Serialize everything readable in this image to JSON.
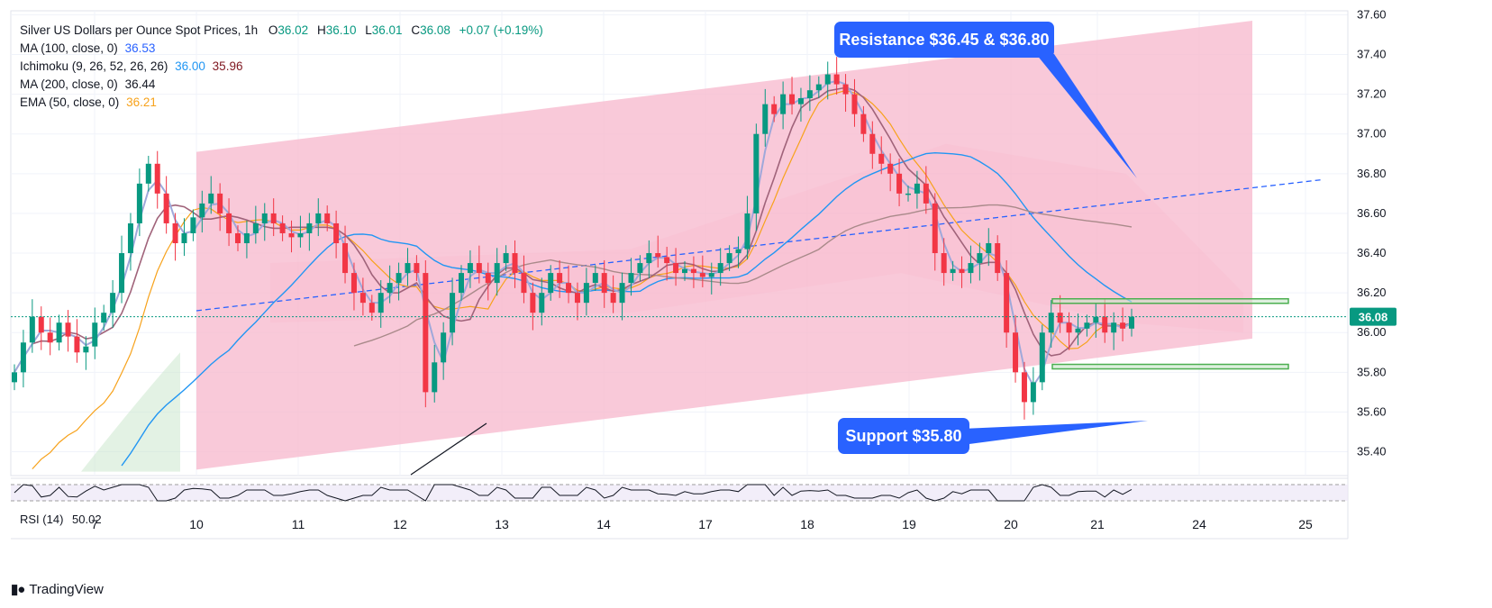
{
  "legend": {
    "title": "Silver US Dollars per Ounce Spot Prices, 1h",
    "ohlc": {
      "o_label": "O",
      "o": "36.02",
      "h_label": "H",
      "h": "36.10",
      "l_label": "L",
      "l": "36.01",
      "c_label": "C",
      "c": "36.08",
      "change": "+0.07 (+0.19%)"
    },
    "indicators": [
      {
        "label": "MA (100, close, 0)",
        "values": [
          "36.53"
        ],
        "colors": [
          "#2962ff"
        ]
      },
      {
        "label": "Ichimoku (9, 26, 52, 26, 26)",
        "values": [
          "36.00",
          "35.96"
        ],
        "colors": [
          "#2196f3",
          "#801922"
        ]
      },
      {
        "label": "MA (200, close, 0)",
        "values": [
          "36.44"
        ],
        "colors": [
          "#131722"
        ]
      },
      {
        "label": "EMA (50, close, 0)",
        "values": [
          "36.21"
        ],
        "colors": [
          "#f7a21b"
        ]
      }
    ]
  },
  "callouts": {
    "resistance": "Resistance $36.45 & $36.80",
    "support": "Support $35.80"
  },
  "current_price": "36.08",
  "rsi_label": "RSI (14)",
  "rsi_value": "50.02",
  "brand": "TradingView",
  "colors": {
    "up": "#089981",
    "down": "#f23645",
    "channel": "#f8bbd0",
    "callout": "#2962ff",
    "zone": "#4caf50",
    "ma100": "#2196f3",
    "ma200": "#a98a8a",
    "ema50": "#f7a21b"
  },
  "chart_data": {
    "type": "line",
    "title": "Silver US Dollars per Ounce Spot Prices, 1h",
    "y_axis": {
      "ticks": [
        "35.40",
        "35.60",
        "35.80",
        "36.00",
        "36.20",
        "36.40",
        "36.60",
        "36.80",
        "37.00",
        "37.20",
        "37.40",
        "37.60"
      ],
      "ylim": [
        35.28,
        37.62
      ],
      "position": "right"
    },
    "x_axis": {
      "ticks": [
        "7",
        "10",
        "11",
        "12",
        "13",
        "14",
        "17",
        "18",
        "19",
        "20",
        "21",
        "24",
        "25"
      ]
    },
    "price_series_close": [
      35.8,
      35.95,
      36.08,
      36.0,
      35.95,
      36.05,
      35.98,
      35.9,
      35.93,
      36.05,
      36.1,
      36.2,
      36.4,
      36.55,
      36.75,
      36.85,
      36.7,
      36.55,
      36.45,
      36.5,
      36.58,
      36.65,
      36.7,
      36.6,
      36.5,
      36.45,
      36.5,
      36.55,
      36.6,
      36.55,
      36.5,
      36.48,
      36.5,
      36.55,
      36.6,
      36.55,
      36.45,
      36.3,
      36.2,
      36.15,
      36.1,
      36.2,
      36.25,
      36.3,
      36.35,
      36.3,
      35.7,
      35.85,
      36.0,
      36.2,
      36.3,
      36.35,
      36.3,
      36.25,
      36.35,
      36.4,
      36.3,
      36.2,
      36.1,
      36.2,
      36.3,
      36.25,
      36.2,
      36.15,
      36.25,
      36.3,
      36.2,
      36.15,
      36.25,
      36.3,
      36.35,
      36.4,
      36.38,
      36.35,
      36.3,
      36.32,
      36.3,
      36.28,
      36.3,
      36.35,
      36.4,
      36.42,
      36.6,
      37.0,
      37.15,
      37.1,
      37.2,
      37.15,
      37.18,
      37.22,
      37.25,
      37.3,
      37.25,
      37.2,
      37.1,
      37.0,
      36.9,
      36.85,
      36.8,
      36.7,
      36.7,
      36.75,
      36.65,
      36.4,
      36.3,
      36.32,
      36.3,
      36.35,
      36.4,
      36.45,
      36.3,
      36.0,
      35.8,
      35.65,
      35.75,
      36.0,
      36.1,
      36.05,
      36.0,
      36.02,
      36.05,
      36.08,
      36.0,
      36.05,
      36.02,
      36.08
    ],
    "channel": {
      "top_start": 36.91,
      "top_end": 37.57,
      "bottom_start": 35.31,
      "bottom_end": 35.97,
      "start_x": "10",
      "end_x": "24"
    },
    "trendline": {
      "start": 36.11,
      "end": 36.77
    },
    "resistance_levels": [
      36.45,
      36.8
    ],
    "support_level": 35.8,
    "zones": [
      {
        "from": 36.15,
        "to": 36.17
      },
      {
        "from": 35.82,
        "to": 35.84
      }
    ],
    "ma100_last": 36.53,
    "ma200_last": 36.44,
    "ema50_last": 36.21,
    "ichimoku": [
      36.0,
      35.96
    ],
    "rsi": {
      "period": 14,
      "last": 50.02
    }
  }
}
